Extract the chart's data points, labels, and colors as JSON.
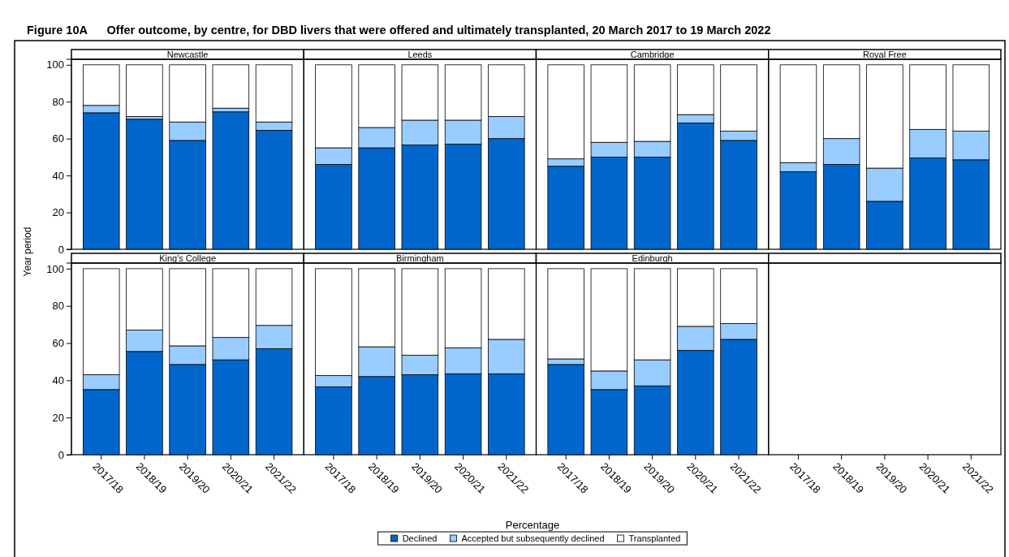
{
  "chart_data": [
    {
      "type": "bar",
      "title": "Figure 10A      Offer outcome, by centre, for DBD livers that were offered and ultimately transplanted, 20 March 2017 to 19 March 2022",
      "subtitle": "Newcastle",
      "ylabel": "Year period",
      "legend": "bottom",
      "stacked": true,
      "tick_labels": "y",
      "ylim": [
        0,
        103
      ],
      "yticks": [
        0,
        20,
        40,
        60,
        80,
        100
      ],
      "categories": [
        "2017/18",
        "2018/19",
        "2019/20",
        "2020/21",
        "2021/22"
      ],
      "series": [
        {
          "name": "Declined",
          "color": "#0066cc",
          "values": [
            74,
            70.5,
            59,
            74.5,
            64.5
          ]
        },
        {
          "name": "Accepted but subsequently declined",
          "color": "#99ccff",
          "values": [
            4,
            1.5,
            10,
            2,
            4.5
          ]
        },
        {
          "name": "Transplanted",
          "color": "#ffffff",
          "values": [
            22,
            28,
            31,
            23.5,
            31
          ]
        }
      ]
    },
    {
      "type": "bar",
      "subtitle": "Leeds",
      "stacked": true,
      "tick_labels": false,
      "ylim": [
        0,
        103
      ],
      "categories": [
        "2017/18",
        "2018/19",
        "2019/20",
        "2020/21",
        "2021/22"
      ],
      "series": [
        {
          "color": "#0066cc",
          "values": [
            46,
            55,
            56.5,
            57,
            60
          ]
        },
        {
          "color": "#99ccff",
          "values": [
            9,
            11,
            13.5,
            13,
            12
          ]
        },
        {
          "color": "#ffffff",
          "values": [
            45,
            34,
            30,
            30,
            28
          ]
        }
      ]
    },
    {
      "type": "bar",
      "subtitle": "Cambridge",
      "stacked": true,
      "tick_labels": false,
      "ylim": [
        0,
        103
      ],
      "categories": [
        "2017/18",
        "2018/19",
        "2019/20",
        "2020/21",
        "2021/22"
      ],
      "series": [
        {
          "color": "#0066cc",
          "values": [
            45,
            50,
            50,
            68.5,
            59
          ]
        },
        {
          "color": "#99ccff",
          "values": [
            4,
            8,
            8.5,
            4.5,
            5
          ]
        },
        {
          "color": "#ffffff",
          "values": [
            51,
            42,
            41.5,
            27,
            36
          ]
        }
      ]
    },
    {
      "type": "bar",
      "subtitle": "Royal Free",
      "stacked": true,
      "tick_labels": false,
      "ylim": [
        0,
        103
      ],
      "categories": [
        "2017/18",
        "2018/19",
        "2019/20",
        "2020/21",
        "2021/22"
      ],
      "series": [
        {
          "color": "#0066cc",
          "values": [
            42,
            46,
            26,
            49.5,
            48.5
          ]
        },
        {
          "color": "#99ccff",
          "values": [
            5,
            14,
            18,
            15.5,
            15.5
          ]
        },
        {
          "color": "#ffffff",
          "values": [
            53,
            40,
            56,
            35,
            36
          ]
        }
      ]
    },
    {
      "type": "bar",
      "subtitle": "King's College",
      "stacked": true,
      "ylim": [
        0,
        103
      ],
      "yticks": [
        0,
        20,
        40,
        60,
        80,
        100
      ],
      "categories": [
        "2017/18",
        "2018/19",
        "2019/20",
        "2020/21",
        "2021/22"
      ],
      "series": [
        {
          "color": "#0066cc",
          "values": [
            35,
            55.5,
            48.5,
            51,
            57
          ]
        },
        {
          "color": "#99ccff",
          "values": [
            8,
            11.5,
            10,
            12,
            12.5
          ]
        },
        {
          "color": "#ffffff",
          "values": [
            57,
            33,
            41.5,
            37,
            30.5
          ]
        }
      ]
    },
    {
      "type": "bar",
      "subtitle": "Birmingham",
      "xlabel": "Percentage",
      "stacked": true,
      "tick_labels": "x",
      "ylim": [
        0,
        103
      ],
      "categories": [
        "2017/18",
        "2018/19",
        "2019/20",
        "2020/21",
        "2021/22"
      ],
      "series": [
        {
          "color": "#0066cc",
          "values": [
            36.5,
            42,
            43,
            43.5,
            43.5
          ]
        },
        {
          "color": "#99ccff",
          "values": [
            6,
            16,
            10.5,
            14,
            18.5
          ]
        },
        {
          "color": "#ffffff",
          "values": [
            57.5,
            42,
            46.5,
            42.5,
            38
          ]
        }
      ]
    },
    {
      "type": "bar",
      "subtitle": "Edinburgh",
      "stacked": true,
      "tick_labels": "x",
      "ylim": [
        0,
        103
      ],
      "categories": [
        "2017/18",
        "2018/19",
        "2019/20",
        "2020/21",
        "2021/22"
      ],
      "series": [
        {
          "color": "#0066cc",
          "values": [
            48.5,
            35,
            37,
            56,
            62
          ]
        },
        {
          "color": "#99ccff",
          "values": [
            3,
            10,
            14,
            13,
            8.5
          ]
        },
        {
          "color": "#ffffff",
          "values": [
            48.5,
            55,
            49,
            31,
            29.5
          ]
        }
      ]
    },
    {
      "type": "bar",
      "tick_labels": "x",
      "ylim": [
        0,
        103
      ],
      "categories": [
        "2017/18",
        "2018/19",
        "2019/20",
        "2020/21",
        "2021/22"
      ],
      "values": [
        null,
        null,
        null,
        null,
        null
      ]
    }
  ]
}
